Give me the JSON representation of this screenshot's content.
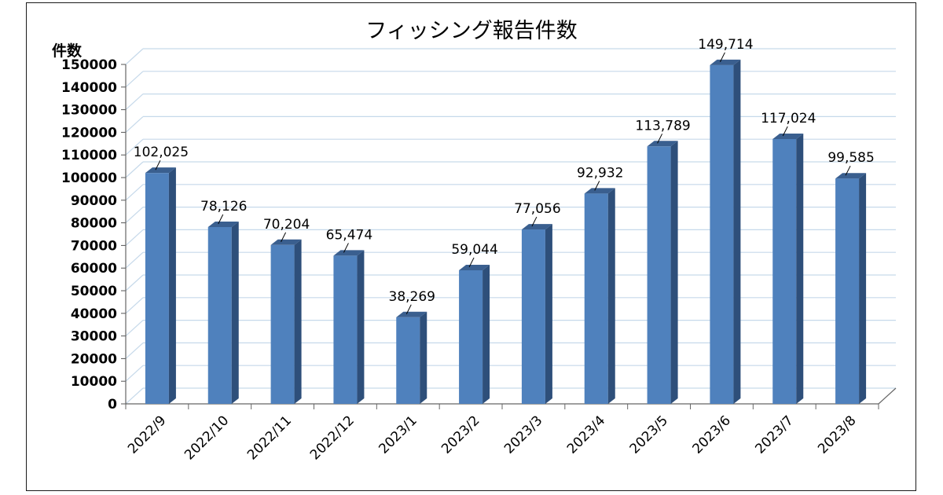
{
  "chart_data": {
    "type": "bar",
    "title": "フィッシング報告件数",
    "ylabel": "件数",
    "xlabel": "",
    "categories": [
      "2022/9",
      "2022/10",
      "2022/11",
      "2022/12",
      "2023/1",
      "2023/2",
      "2023/3",
      "2023/4",
      "2023/5",
      "2023/6",
      "2023/7",
      "2023/8"
    ],
    "values": [
      102025,
      78126,
      70204,
      65474,
      38269,
      59044,
      77056,
      92932,
      113789,
      149714,
      117024,
      99585
    ],
    "value_labels": [
      "102,025",
      "78,126",
      "70,204",
      "65,474",
      "38,269",
      "59,044",
      "77,056",
      "92,932",
      "113,789",
      "149,714",
      "117,024",
      "99,585"
    ],
    "yticks": [
      "0",
      "10000",
      "20000",
      "30000",
      "40000",
      "50000",
      "60000",
      "70000",
      "80000",
      "90000",
      "100000",
      "110000",
      "120000",
      "130000",
      "140000",
      "150000"
    ],
    "ylim": [
      0,
      150000
    ],
    "grid": true,
    "bar_style": "3d",
    "colors": {
      "bar_front": "#4f81bd",
      "bar_side": "#2e4f7a",
      "bar_top": "#3a5f8f",
      "grid": "#c6d9ea"
    }
  }
}
